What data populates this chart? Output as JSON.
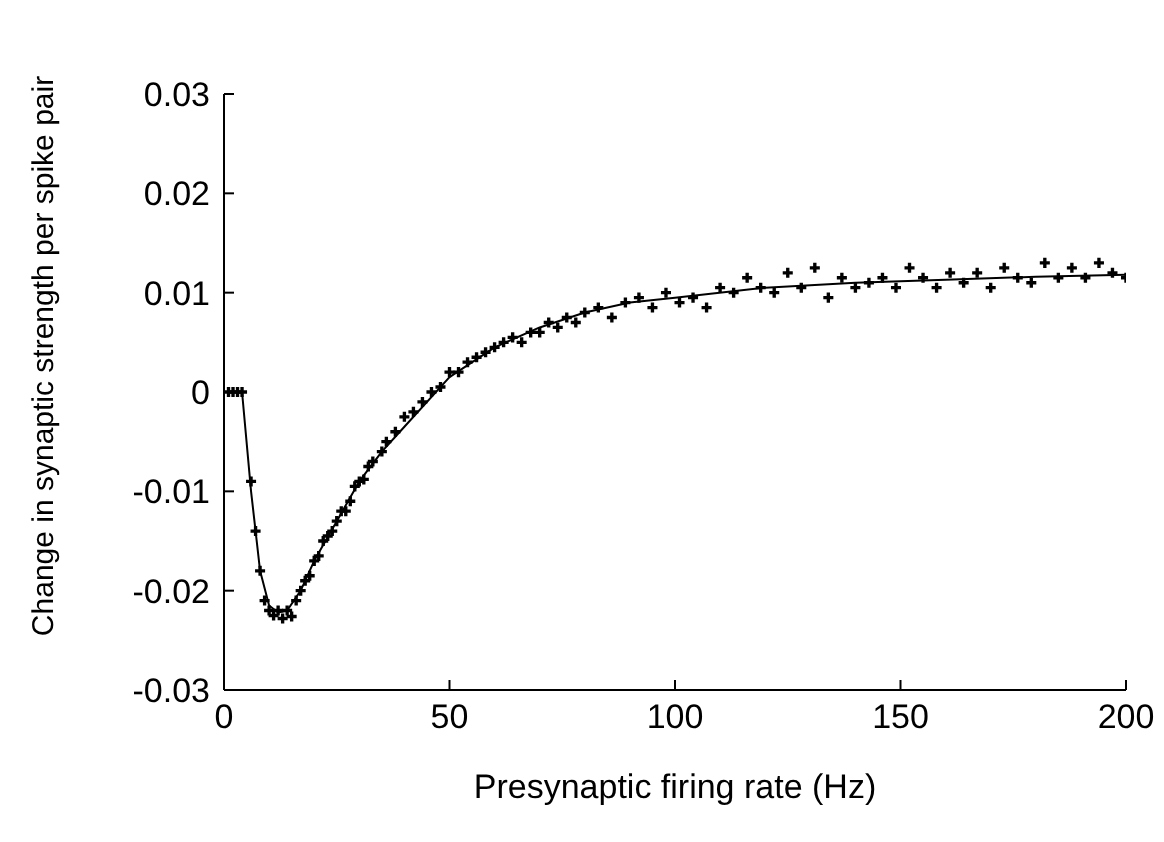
{
  "chart_data": {
    "type": "scatter",
    "xlabel": "Presynaptic firing rate (Hz)",
    "ylabel": "Change in synaptic strength per spike pair",
    "xlim": [
      0,
      200
    ],
    "xticks": [
      0,
      50,
      100,
      150,
      200
    ],
    "ylim": [
      -0.03,
      0.03
    ],
    "yticks": [
      -0.03,
      -0.02,
      -0.01,
      0,
      0.01,
      0.02,
      0.03
    ],
    "grid": false,
    "legend": false,
    "series": [
      {
        "marker": "cross",
        "color": "#000000",
        "x": [
          1,
          2,
          3,
          4,
          6,
          7,
          8,
          9,
          10,
          11,
          12,
          13,
          14,
          15,
          16,
          17,
          18,
          19,
          20,
          21,
          22,
          23,
          24,
          25,
          26,
          27,
          28,
          29,
          30,
          31,
          32,
          33,
          35,
          36,
          38,
          40,
          42,
          44,
          46,
          48,
          50,
          52,
          54,
          56,
          58,
          60,
          62,
          64,
          66,
          68,
          70,
          72,
          74,
          76,
          78,
          80,
          83,
          86,
          89,
          92,
          95,
          98,
          101,
          104,
          107,
          110,
          113,
          116,
          119,
          122,
          125,
          128,
          131,
          134,
          137,
          140,
          143,
          146,
          149,
          152,
          155,
          158,
          161,
          164,
          167,
          170,
          173,
          176,
          179,
          182,
          185,
          188,
          191,
          194,
          197,
          200
        ],
        "values": [
          0,
          0,
          0,
          0,
          -0.009,
          -0.014,
          -0.018,
          -0.021,
          -0.022,
          -0.0225,
          -0.022,
          -0.0228,
          -0.022,
          -0.0226,
          -0.021,
          -0.02,
          -0.019,
          -0.0185,
          -0.017,
          -0.0165,
          -0.015,
          -0.0145,
          -0.014,
          -0.013,
          -0.012,
          -0.012,
          -0.011,
          -0.0095,
          -0.009,
          -0.0088,
          -0.0075,
          -0.007,
          -0.006,
          -0.005,
          -0.004,
          -0.0025,
          -0.002,
          -0.001,
          0,
          0.0005,
          0.002,
          0.002,
          0.003,
          0.0035,
          0.004,
          0.0045,
          0.005,
          0.0055,
          0.005,
          0.006,
          0.006,
          0.007,
          0.0065,
          0.0075,
          0.007,
          0.008,
          0.0085,
          0.0075,
          0.009,
          0.0095,
          0.0085,
          0.01,
          0.009,
          0.0095,
          0.0085,
          0.0105,
          0.01,
          0.0115,
          0.0105,
          0.01,
          0.012,
          0.0105,
          0.0125,
          0.0095,
          0.0115,
          0.0105,
          0.011,
          0.0115,
          0.0105,
          0.0125,
          0.0115,
          0.0105,
          0.012,
          0.011,
          0.012,
          0.0105,
          0.0125,
          0.0115,
          0.011,
          0.013,
          0.0115,
          0.0125,
          0.0115,
          0.013,
          0.012,
          0.0115
        ]
      },
      {
        "type": "line",
        "marker": "none",
        "color": "#000000",
        "x": [
          0,
          4,
          6,
          8,
          10,
          12,
          14,
          17,
          20,
          25,
          30,
          35,
          40,
          50,
          60,
          70,
          80,
          90,
          100,
          120,
          140,
          160,
          180,
          200
        ],
        "values": [
          0,
          0,
          -0.01,
          -0.018,
          -0.0215,
          -0.0222,
          -0.022,
          -0.02,
          -0.017,
          -0.013,
          -0.009,
          -0.006,
          -0.0035,
          0.0015,
          0.0045,
          0.0065,
          0.008,
          0.009,
          0.0095,
          0.0105,
          0.011,
          0.0113,
          0.0116,
          0.0118
        ]
      }
    ]
  }
}
